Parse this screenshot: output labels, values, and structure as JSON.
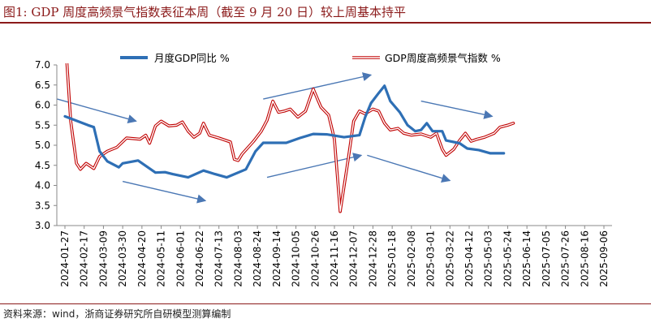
{
  "header": {
    "title": "图1:  GDP 周度高频景气指数表征本周（截至 9 月 20 日）较上周基本持平"
  },
  "footer": {
    "source": "资料来源：wind，浙商证券研究所自研模型测算编制"
  },
  "colors": {
    "accent": "#8B1A1A",
    "gdp_yoy": "#2E6FB5",
    "gdp_index": "#C00000",
    "arrow": "#4A77B4"
  },
  "chart_data": {
    "type": "line",
    "ylim": [
      3.0,
      7.0
    ],
    "yticks": [
      "3.0",
      "3.5",
      "4.0",
      "4.5",
      "5.0",
      "5.5",
      "6.0",
      "6.5",
      "7.0"
    ],
    "categories": [
      "2024-01-27",
      "2024-02-17",
      "2024-03-09",
      "2024-03-30",
      "2024-04-20",
      "2024-05-11",
      "2024-06-01",
      "2024-06-22",
      "2024-07-13",
      "2024-08-03",
      "2024-08-24",
      "2024-09-14",
      "2024-10-05",
      "2024-10-26",
      "2024-11-16",
      "2024-12-07",
      "2024-12-28",
      "2025-01-18",
      "2025-02-08",
      "2025-03-01",
      "2025-03-22",
      "2025-04-12",
      "2025-05-03",
      "2025-05-24",
      "2025-06-14",
      "2025-07-05",
      "2025-07-26",
      "2025-08-16",
      "2025-09-06"
    ],
    "series": [
      {
        "name": "月度GDP同比 %",
        "color": "#2E6FB5",
        "points": [
          [
            0,
            5.72
          ],
          [
            1.2,
            5.5
          ],
          [
            1.5,
            5.45
          ],
          [
            1.8,
            4.85
          ],
          [
            2.2,
            4.6
          ],
          [
            2.8,
            4.45
          ],
          [
            3.0,
            4.55
          ],
          [
            3.8,
            4.62
          ],
          [
            4.7,
            4.32
          ],
          [
            5.2,
            4.33
          ],
          [
            5.6,
            4.28
          ],
          [
            6.4,
            4.2
          ],
          [
            7.2,
            4.37
          ],
          [
            7.8,
            4.28
          ],
          [
            8.4,
            4.2
          ],
          [
            9.4,
            4.4
          ],
          [
            9.9,
            4.85
          ],
          [
            10.3,
            5.06
          ],
          [
            11.5,
            5.06
          ],
          [
            12.2,
            5.18
          ],
          [
            12.9,
            5.28
          ],
          [
            13.6,
            5.27
          ],
          [
            14.5,
            5.2
          ],
          [
            15.3,
            5.25
          ],
          [
            15.6,
            5.7
          ],
          [
            15.9,
            6.05
          ],
          [
            16.3,
            6.3
          ],
          [
            16.6,
            6.48
          ],
          [
            16.9,
            6.1
          ],
          [
            17.4,
            5.82
          ],
          [
            17.8,
            5.5
          ],
          [
            18.2,
            5.35
          ],
          [
            18.5,
            5.38
          ],
          [
            18.8,
            5.55
          ],
          [
            19.1,
            5.35
          ],
          [
            19.6,
            5.35
          ],
          [
            19.8,
            5.12
          ],
          [
            20.5,
            5.05
          ],
          [
            20.9,
            4.92
          ],
          [
            21.5,
            4.88
          ],
          [
            22.1,
            4.8
          ],
          [
            22.8,
            4.8
          ]
        ]
      },
      {
        "name": "GDP周度高频景气指数 %",
        "color": "#C00000",
        "points": [
          [
            0,
            7.8
          ],
          [
            0.3,
            5.6
          ],
          [
            0.6,
            4.55
          ],
          [
            0.8,
            4.4
          ],
          [
            1.1,
            4.55
          ],
          [
            1.5,
            4.42
          ],
          [
            1.8,
            4.72
          ],
          [
            2.2,
            4.85
          ],
          [
            2.7,
            4.95
          ],
          [
            3.2,
            5.18
          ],
          [
            3.9,
            5.15
          ],
          [
            4.2,
            5.25
          ],
          [
            4.4,
            5.05
          ],
          [
            4.7,
            5.48
          ],
          [
            5.0,
            5.6
          ],
          [
            5.4,
            5.48
          ],
          [
            5.8,
            5.5
          ],
          [
            6.1,
            5.58
          ],
          [
            6.4,
            5.35
          ],
          [
            6.7,
            5.2
          ],
          [
            7.0,
            5.3
          ],
          [
            7.2,
            5.55
          ],
          [
            7.5,
            5.25
          ],
          [
            8.0,
            5.18
          ],
          [
            8.6,
            5.08
          ],
          [
            8.8,
            4.65
          ],
          [
            9.0,
            4.62
          ],
          [
            9.2,
            4.78
          ],
          [
            9.8,
            5.1
          ],
          [
            10.2,
            5.35
          ],
          [
            10.5,
            5.62
          ],
          [
            10.8,
            6.1
          ],
          [
            11.1,
            5.82
          ],
          [
            11.4,
            5.85
          ],
          [
            11.7,
            5.9
          ],
          [
            12.1,
            5.7
          ],
          [
            12.5,
            5.85
          ],
          [
            12.9,
            6.4
          ],
          [
            13.3,
            5.95
          ],
          [
            13.7,
            5.75
          ],
          [
            14.0,
            5.15
          ],
          [
            14.3,
            3.35
          ],
          [
            14.7,
            4.6
          ],
          [
            15.0,
            5.6
          ],
          [
            15.3,
            5.85
          ],
          [
            15.6,
            5.78
          ],
          [
            16.0,
            5.9
          ],
          [
            16.3,
            5.85
          ],
          [
            16.6,
            5.55
          ],
          [
            16.9,
            5.38
          ],
          [
            17.3,
            5.42
          ],
          [
            17.6,
            5.3
          ],
          [
            18.0,
            5.25
          ],
          [
            18.5,
            5.28
          ],
          [
            19.0,
            5.2
          ],
          [
            19.3,
            5.3
          ],
          [
            19.6,
            4.9
          ],
          [
            19.8,
            4.75
          ],
          [
            20.2,
            4.9
          ],
          [
            20.5,
            5.12
          ],
          [
            20.8,
            5.3
          ],
          [
            21.1,
            5.1
          ],
          [
            21.4,
            5.15
          ],
          [
            21.8,
            5.2
          ],
          [
            22.3,
            5.3
          ],
          [
            22.6,
            5.45
          ],
          [
            23.0,
            5.5
          ],
          [
            23.3,
            5.55
          ]
        ]
      }
    ],
    "arrows": [
      [
        [
          -0.4,
          6.15
        ],
        [
          3.7,
          5.6
        ]
      ],
      [
        [
          3.0,
          4.1
        ],
        [
          7.3,
          3.62
        ]
      ],
      [
        [
          10.3,
          6.15
        ],
        [
          15.9,
          6.75
        ]
      ],
      [
        [
          10.5,
          4.2
        ],
        [
          15.4,
          4.75
        ]
      ],
      [
        [
          15.7,
          4.75
        ],
        [
          20.0,
          4.12
        ]
      ],
      [
        [
          18.5,
          6.1
        ],
        [
          22.2,
          5.72
        ]
      ]
    ]
  }
}
